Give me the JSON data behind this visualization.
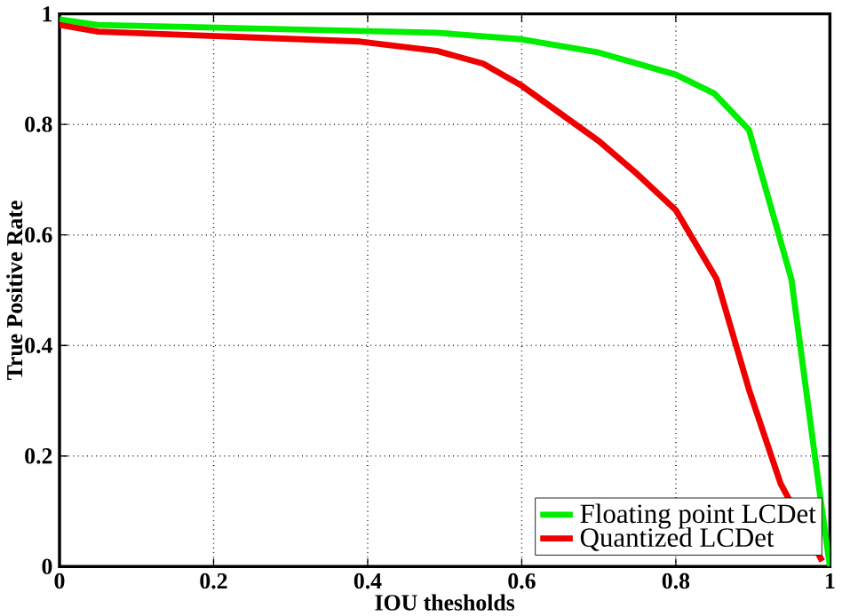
{
  "chart_data": {
    "type": "line",
    "xlabel": "IOU thesholds",
    "ylabel": "True Positive Rate",
    "xlim": [
      0,
      1
    ],
    "ylim": [
      0,
      1
    ],
    "xticks": [
      0,
      0.2,
      0.4,
      0.6,
      0.8,
      1
    ],
    "yticks": [
      0,
      0.2,
      0.4,
      0.6,
      0.8,
      1
    ],
    "grid": true,
    "legend": "bottom right",
    "line_style": "solid",
    "series": [
      {
        "name": "Floating point LCDet",
        "color": "#00ee00",
        "x": [
          0,
          0.05,
          0.49,
          0.6,
          0.7,
          0.8,
          0.85,
          0.895,
          0.95,
          0.99,
          1
        ],
        "values": [
          0.99,
          0.98,
          0.966,
          0.954,
          0.93,
          0.89,
          0.856,
          0.79,
          0.52,
          0.1,
          0
        ]
      },
      {
        "name": "Quantized LCDet",
        "color": "#ee0000",
        "x": [
          0,
          0.05,
          0.39,
          0.49,
          0.55,
          0.6,
          0.65,
          0.7,
          0.75,
          0.8,
          0.853,
          0.895,
          0.936,
          0.99
        ],
        "values": [
          0.98,
          0.968,
          0.95,
          0.933,
          0.91,
          0.87,
          0.82,
          0.77,
          0.71,
          0.645,
          0.52,
          0.32,
          0.15,
          0.01
        ]
      }
    ]
  }
}
